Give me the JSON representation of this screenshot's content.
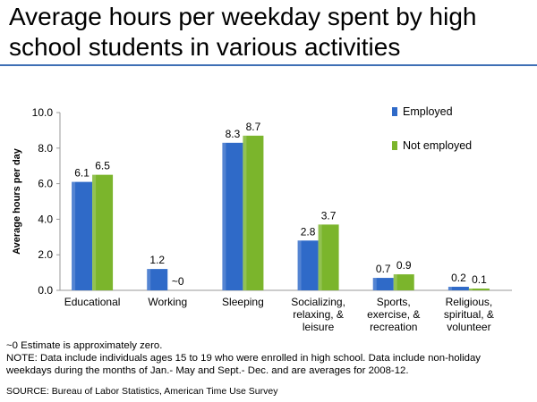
{
  "title": "Average hours per weekday spent by high school students in various activities",
  "colors": {
    "accent_rule": "#3e6fb5",
    "employed": "#2f6ac8",
    "not_employed": "#7bb52c"
  },
  "chart_data": {
    "type": "bar",
    "ylabel": "Average hours per day",
    "ylim": [
      0,
      10
    ],
    "yticks": [
      "0.0",
      "2.0",
      "4.0",
      "6.0",
      "8.0",
      "10.0"
    ],
    "categories": [
      [
        "Educational"
      ],
      [
        "Working"
      ],
      [
        "Sleeping"
      ],
      [
        "Socializing,",
        "relaxing, &",
        "leisure"
      ],
      [
        "Sports,",
        "exercise, &",
        "recreation"
      ],
      [
        "Religious,",
        "spiritual, &",
        "volunteer"
      ]
    ],
    "series": [
      {
        "name": "Employed",
        "values": [
          6.1,
          1.2,
          8.3,
          2.8,
          0.7,
          0.2
        ],
        "labels": [
          "6.1",
          "1.2",
          "8.3",
          "2.8",
          "0.7",
          "0.2"
        ]
      },
      {
        "name": "Not employed",
        "values": [
          6.5,
          0,
          8.7,
          3.7,
          0.9,
          0.1
        ],
        "labels": [
          "6.5",
          "~0",
          "8.7",
          "3.7",
          "0.9",
          "0.1"
        ]
      }
    ],
    "legend_position": "top-right"
  },
  "notes": {
    "line1": "~0 Estimate is approximately zero.",
    "line2": "NOTE: Data include individuals ages 15 to 19 who were enrolled in high school. Data include non-holiday",
    "line3": "weekdays during the months of Jan.- May and Sept.- Dec. and are averages for 2008-12."
  },
  "source": "SOURCE: Bureau of Labor Statistics, American Time Use Survey"
}
